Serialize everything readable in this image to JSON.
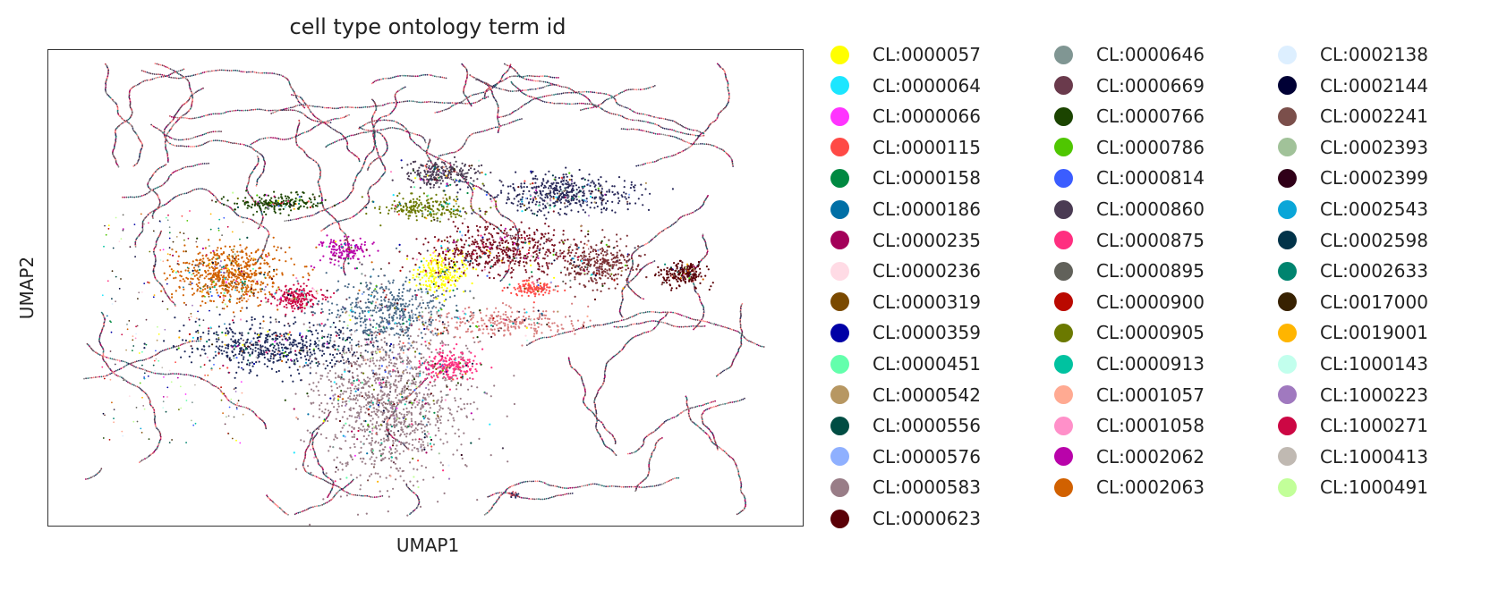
{
  "chart_data": {
    "type": "scatter",
    "title": "cell type ontology term id",
    "xlabel": "UMAP1",
    "ylabel": "UMAP2",
    "grid": false,
    "ticks": "none",
    "legend_position": "right, outside, 3 columns",
    "legend": [
      {
        "label": "CL:0000057",
        "color": "#ffff00"
      },
      {
        "label": "CL:0000064",
        "color": "#1ce6ff"
      },
      {
        "label": "CL:0000066",
        "color": "#ff34ff"
      },
      {
        "label": "CL:0000115",
        "color": "#ff4a46"
      },
      {
        "label": "CL:0000158",
        "color": "#008941"
      },
      {
        "label": "CL:0000186",
        "color": "#006fa6"
      },
      {
        "label": "CL:0000235",
        "color": "#a30059"
      },
      {
        "label": "CL:0000236",
        "color": "#ffdbe5"
      },
      {
        "label": "CL:0000319",
        "color": "#7a4900"
      },
      {
        "label": "CL:0000359",
        "color": "#0000a6"
      },
      {
        "label": "CL:0000451",
        "color": "#63ffac"
      },
      {
        "label": "CL:0000542",
        "color": "#b79762"
      },
      {
        "label": "CL:0000556",
        "color": "#004d43"
      },
      {
        "label": "CL:0000576",
        "color": "#8fb0ff"
      },
      {
        "label": "CL:0000583",
        "color": "#997d87"
      },
      {
        "label": "CL:0000623",
        "color": "#5a0007"
      },
      {
        "label": "CL:0000646",
        "color": "#809693"
      },
      {
        "label": "CL:0000669",
        "color": "#6a3a4c"
      },
      {
        "label": "CL:0000766",
        "color": "#1b4400"
      },
      {
        "label": "CL:0000786",
        "color": "#4fc601"
      },
      {
        "label": "CL:0000814",
        "color": "#3b5dff"
      },
      {
        "label": "CL:0000860",
        "color": "#4a3b53"
      },
      {
        "label": "CL:0000875",
        "color": "#ff2f80"
      },
      {
        "label": "CL:0000895",
        "color": "#61615a"
      },
      {
        "label": "CL:0000900",
        "color": "#ba0900"
      },
      {
        "label": "CL:0000905",
        "color": "#6b7900"
      },
      {
        "label": "CL:0000913",
        "color": "#00c2a0"
      },
      {
        "label": "CL:0001057",
        "color": "#ffaa92"
      },
      {
        "label": "CL:0001058",
        "color": "#ff90c9"
      },
      {
        "label": "CL:0002062",
        "color": "#b903aa"
      },
      {
        "label": "CL:0002063",
        "color": "#d16100"
      },
      {
        "label": "CL:0002138",
        "color": "#ddefff"
      },
      {
        "label": "CL:0002144",
        "color": "#000035"
      },
      {
        "label": "CL:0002241",
        "color": "#7b4f4b"
      },
      {
        "label": "CL:0002393",
        "color": "#a1c299"
      },
      {
        "label": "CL:0002399",
        "color": "#300018"
      },
      {
        "label": "CL:0002543",
        "color": "#0aa6d8"
      },
      {
        "label": "CL:0002598",
        "color": "#013349"
      },
      {
        "label": "CL:0002633",
        "color": "#00846f"
      },
      {
        "label": "CL:0017000",
        "color": "#372101"
      },
      {
        "label": "CL:0019001",
        "color": "#ffb500"
      },
      {
        "label": "CL:1000143",
        "color": "#c2ffed"
      },
      {
        "label": "CL:1000223",
        "color": "#a079bf"
      },
      {
        "label": "CL:1000271",
        "color": "#cc0744"
      },
      {
        "label": "CL:1000413",
        "color": "#c0b9b2"
      },
      {
        "label": "CL:1000491",
        "color": "#c2ff99"
      }
    ],
    "clusters": [
      {
        "name": "large mauve cluster (CL:0000583)",
        "cx": 0.45,
        "cy": 0.73,
        "rx": 0.1,
        "ry": 0.17,
        "color": "#997d87",
        "n": 1400
      },
      {
        "name": "orange cluster (CL:0002063)",
        "cx": 0.24,
        "cy": 0.47,
        "rx": 0.075,
        "ry": 0.06,
        "color": "#d16100",
        "n": 700
      },
      {
        "name": "yellow cluster (CL:0000057)",
        "cx": 0.52,
        "cy": 0.47,
        "rx": 0.035,
        "ry": 0.04,
        "color": "#ffff00",
        "n": 260
      },
      {
        "name": "crimson cluster (CL:1000271)",
        "cx": 0.33,
        "cy": 0.52,
        "rx": 0.035,
        "ry": 0.025,
        "color": "#cc0744",
        "n": 220
      },
      {
        "name": "magenta cluster (CL:0002062)",
        "cx": 0.39,
        "cy": 0.42,
        "rx": 0.03,
        "ry": 0.03,
        "color": "#b903aa",
        "n": 160
      },
      {
        "name": "green cluster (CL:0000766)",
        "cx": 0.3,
        "cy": 0.32,
        "rx": 0.06,
        "ry": 0.02,
        "color": "#1b4400",
        "n": 220
      },
      {
        "name": "olive-green cluster (CL:0000905)",
        "cx": 0.5,
        "cy": 0.33,
        "rx": 0.06,
        "ry": 0.025,
        "color": "#6b7900",
        "n": 240
      },
      {
        "name": "dark red band (CL:0000623)",
        "cx": 0.6,
        "cy": 0.42,
        "rx": 0.1,
        "ry": 0.05,
        "color": "#7a1020",
        "n": 600
      },
      {
        "name": "navy upper oval (CL:0002144)",
        "cx": 0.68,
        "cy": 0.3,
        "rx": 0.09,
        "ry": 0.04,
        "color": "#2a2a5a",
        "n": 500
      },
      {
        "name": "dark upper oval left (CL:0000860)",
        "cx": 0.52,
        "cy": 0.26,
        "rx": 0.05,
        "ry": 0.03,
        "color": "#4a3b53",
        "n": 260
      },
      {
        "name": "maroon mid-right (CL:0000623)",
        "cx": 0.84,
        "cy": 0.47,
        "rx": 0.03,
        "ry": 0.025,
        "color": "#5a0007",
        "n": 220
      },
      {
        "name": "red patch (CL:0000115)",
        "cx": 0.64,
        "cy": 0.5,
        "rx": 0.03,
        "ry": 0.015,
        "color": "#ff4a46",
        "n": 140
      },
      {
        "name": "brown-red oval (CL:0002241)",
        "cx": 0.73,
        "cy": 0.45,
        "rx": 0.05,
        "ry": 0.05,
        "color": "#7b3034",
        "n": 350
      },
      {
        "name": "pink cluster (CL:0000875)",
        "cx": 0.53,
        "cy": 0.66,
        "rx": 0.035,
        "ry": 0.03,
        "color": "#ff2f80",
        "n": 220
      },
      {
        "name": "navy radiating streaks (CL:0002598)",
        "cx": 0.3,
        "cy": 0.62,
        "rx": 0.11,
        "ry": 0.05,
        "color": "#1f2a5a",
        "n": 600
      },
      {
        "name": "mixed center (CL:0000186)",
        "cx": 0.45,
        "cy": 0.55,
        "rx": 0.08,
        "ry": 0.07,
        "color": "#4a6a88",
        "n": 500
      },
      {
        "name": "salmon streaks (CL:0000115)",
        "cx": 0.6,
        "cy": 0.57,
        "rx": 0.1,
        "ry": 0.03,
        "color": "#d98080",
        "n": 300
      }
    ],
    "x_range": [
      0,
      1
    ],
    "y_range": [
      0,
      1
    ]
  }
}
